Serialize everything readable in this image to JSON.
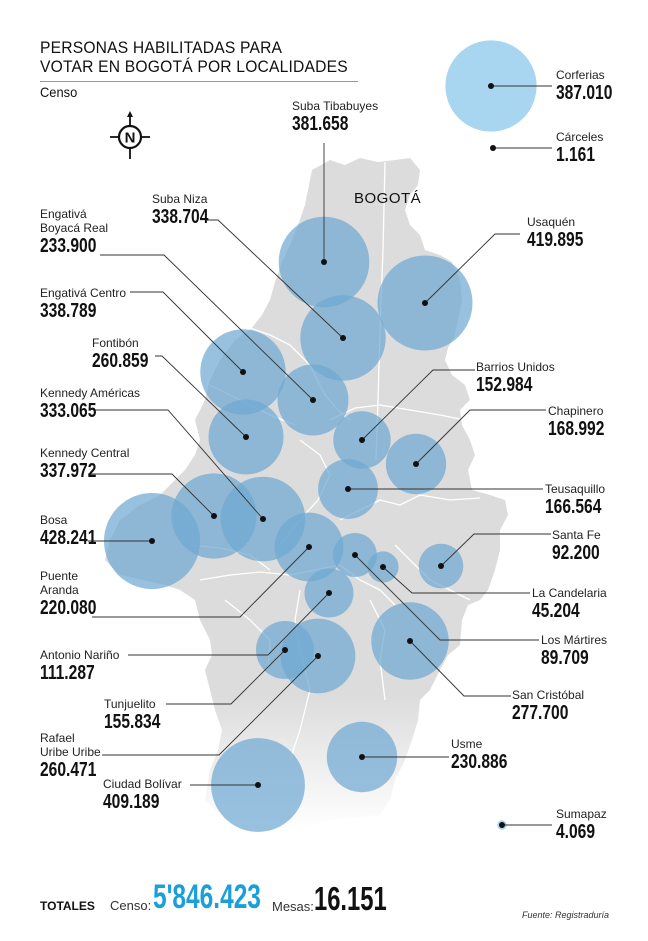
{
  "header": {
    "title_line1": "PERSONAS HABILITADAS PARA",
    "title_line2": "VOTAR EN BOGOTÁ POR LOCALIDADES",
    "subtitle": "Censo"
  },
  "compass": {
    "icon": "north-compass-icon",
    "letter": "N"
  },
  "map": {
    "region_label": "BOGOTÁ",
    "colors": {
      "land": "#dcdcdc",
      "borders": "#ffffff",
      "circle": "#6fa9d1",
      "circle_light": "#a8d6f0",
      "leader": "#333333",
      "dot": "#111111"
    }
  },
  "localidades": [
    {
      "name": "Suba Tibabuyes",
      "value": "381.658"
    },
    {
      "name": "Suba Niza",
      "value": "338.704"
    },
    {
      "name": "Engativá Boyacá Real",
      "value": "233.900"
    },
    {
      "name": "Engativá Centro",
      "value": "338.789"
    },
    {
      "name": "Fontibón",
      "value": "260.859"
    },
    {
      "name": "Kennedy Américas",
      "value": "333.065"
    },
    {
      "name": "Kennedy Central",
      "value": "337.972"
    },
    {
      "name": "Bosa",
      "value": "428.241"
    },
    {
      "name": "Puente Aranda",
      "value": "220.080"
    },
    {
      "name": "Antonio Nariño",
      "value": "111.287"
    },
    {
      "name": "Tunjuelito",
      "value": "155.834"
    },
    {
      "name": "Rafael Uribe Uribe",
      "value": "260.471"
    },
    {
      "name": "Ciudad Bolívar",
      "value": "409.189"
    },
    {
      "name": "Usaquén",
      "value": "419.895"
    },
    {
      "name": "Barrios Unidos",
      "value": "152.984"
    },
    {
      "name": "Chapinero",
      "value": "168.992"
    },
    {
      "name": "Teusaquillo",
      "value": "166.564"
    },
    {
      "name": "Santa Fe",
      "value": "92.200"
    },
    {
      "name": "La Candelaria",
      "value": "45.204"
    },
    {
      "name": "Los Mártires",
      "value": "89.709"
    },
    {
      "name": "San Cristóbal",
      "value": "277.700"
    },
    {
      "name": "Usme",
      "value": "230.886"
    },
    {
      "name": "Sumapaz",
      "value": "4.069"
    },
    {
      "name": "Corferias",
      "value": "387.010"
    },
    {
      "name": "Cárceles",
      "value": "1.161"
    }
  ],
  "labels": {
    "engativa_boyaca_l1": "Engativá",
    "engativa_boyaca_l2": "Boyacá Real",
    "puente_aranda_l1": "Puente",
    "puente_aranda_l2": "Aranda",
    "rafael_l1": "Rafael",
    "rafael_l2": "Uribe Uribe"
  },
  "footer": {
    "totales_label": "TOTALES",
    "censo_label": "Censo:",
    "censo_value": "5'846.423",
    "mesas_label": "Mesas:",
    "mesas_value": "16.151",
    "source": "Fuente: Registraduría"
  }
}
